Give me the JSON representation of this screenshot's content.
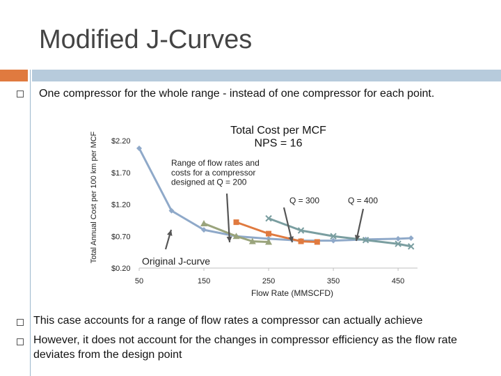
{
  "slide": {
    "title": "Modified J-Curves",
    "bullets": [
      "One compressor for the whole range - instead of one compressor for each point.",
      "This case accounts for a range of flow rates a compressor can actually achieve",
      "However, it does not account for the changes in compressor efficiency as the flow rate deviates from the design point"
    ],
    "colors": {
      "accent": "#e07a3f",
      "title_bar": "#b7cbdc"
    }
  },
  "chart_data": {
    "type": "line",
    "title": "Total Cost per MCF\nNPS = 16",
    "xlabel": "Flow Rate (MMSCFD)",
    "ylabel": "Total Annual Cost per 100 km per MCF",
    "x_ticks": [
      "50",
      "150",
      "250",
      "350",
      "450"
    ],
    "y_ticks": [
      "$0.20",
      "$0.70",
      "$1.20",
      "$1.70",
      "$2.20"
    ],
    "xlim": [
      50,
      480
    ],
    "ylim": [
      0.2,
      2.2
    ],
    "series": [
      {
        "color": "#8fa9c9",
        "marker": "diamond",
        "x": [
          50,
          100,
          150,
          200,
          250,
          300,
          350,
          400,
          450,
          470
        ],
        "y": [
          2.08,
          1.1,
          0.8,
          0.7,
          0.66,
          0.63,
          0.63,
          0.65,
          0.66,
          0.67
        ]
      },
      {
        "color": "#9aa47c",
        "marker": "triangle",
        "x": [
          150,
          200,
          225,
          250
        ],
        "y": [
          0.9,
          0.7,
          0.62,
          0.61
        ]
      },
      {
        "color": "#e07a3f",
        "marker": "square",
        "x": [
          200,
          250,
          300,
          325
        ],
        "y": [
          0.92,
          0.74,
          0.62,
          0.61
        ]
      },
      {
        "color": "#7a9ea0",
        "marker": "x",
        "x": [
          250,
          300,
          350,
          400,
          450,
          470
        ],
        "y": [
          0.98,
          0.79,
          0.7,
          0.64,
          0.58,
          0.54
        ]
      }
    ],
    "annotations": [
      {
        "text": "Range of flow rates and\ncosts for a compressor\ndesigned at Q = 200"
      },
      {
        "text": "Q = 300"
      },
      {
        "text": "Q = 400"
      },
      {
        "text": "Original J-curve"
      }
    ]
  }
}
